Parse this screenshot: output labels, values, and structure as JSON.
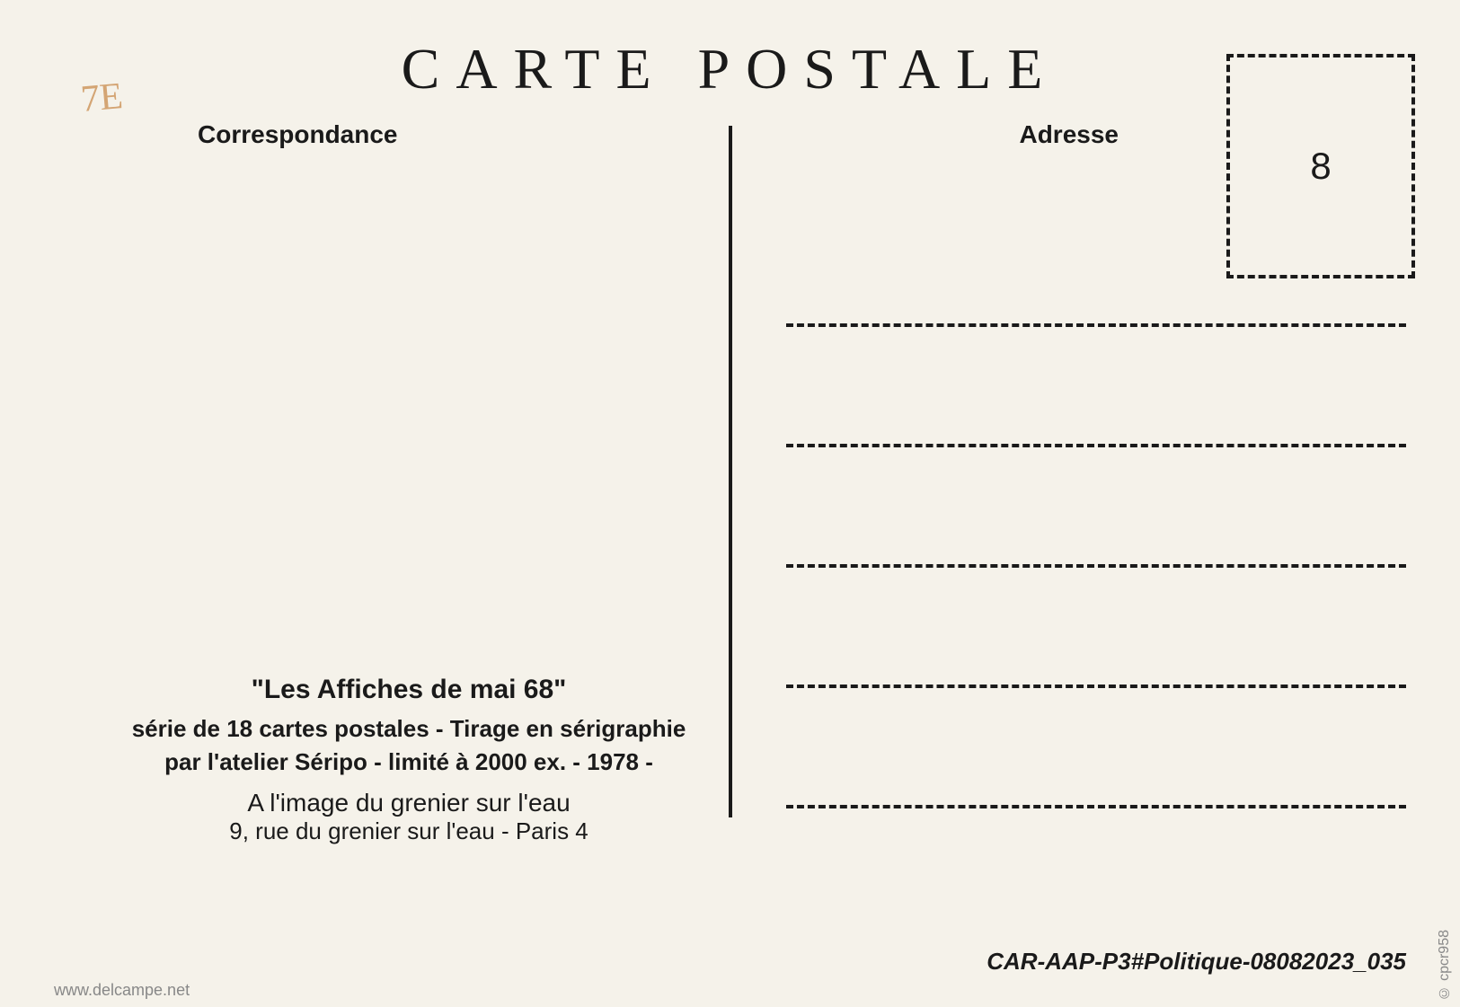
{
  "title": "CARTE POSTALE",
  "labels": {
    "correspondance": "Correspondance",
    "adresse": "Adresse"
  },
  "annotation": "7E",
  "stamp": {
    "number": "8"
  },
  "description": {
    "title": "\"Les Affiches de mai 68\"",
    "line1": "série de 18 cartes postales - Tirage en sérigraphie",
    "line2": "par l'atelier Séripo - limité à 2000 ex. - 1978 -",
    "publisher": "A l'image du grenier sur l'eau",
    "address": "9, rue du grenier sur l'eau - Paris 4"
  },
  "footer_code": "CAR-AAP-P3#Politique-08082023_035",
  "watermark": "www.delcampe.net",
  "copyright": "© cpcr958",
  "styling": {
    "background_color": "#f5f2ea",
    "text_color": "#1a1a1a",
    "annotation_color": "#d4a574",
    "watermark_color": "#888888",
    "title_fontsize": 64,
    "title_letter_spacing": 18,
    "label_fontsize": 28,
    "stamp_fontsize": 42,
    "desc_title_fontsize": 30,
    "desc_line_fontsize": 26,
    "stamp_box_width": 210,
    "stamp_box_height": 250,
    "divider_height": 770,
    "address_line_count": 5,
    "address_line_spacing": 130,
    "dash_border_width": 4
  }
}
